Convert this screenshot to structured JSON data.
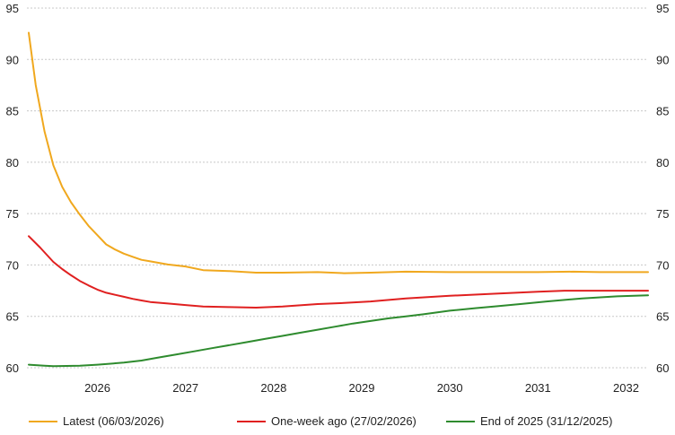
{
  "chart_data": {
    "type": "line",
    "title": "",
    "xlabel": "",
    "ylabel": "",
    "ylim": [
      60,
      95
    ],
    "xlim": [
      2025.7,
      2032.75
    ],
    "y_ticks": [
      60,
      65,
      70,
      75,
      80,
      85,
      90,
      95
    ],
    "x_ticks": [
      "2026",
      "2027",
      "2028",
      "2029",
      "2030",
      "2031",
      "2032"
    ],
    "grid": "horizontal dotted",
    "legend_position": "bottom",
    "series": [
      {
        "name": "Latest (06/03/2026)",
        "color": "#f0a81e",
        "x": [
          2025.72,
          2025.8,
          2025.9,
          2026.0,
          2026.1,
          2026.2,
          2026.3,
          2026.4,
          2026.5,
          2026.6,
          2026.7,
          2026.8,
          2026.9,
          2027.0,
          2027.1,
          2027.2,
          2027.3,
          2027.5,
          2027.7,
          2028.0,
          2028.3,
          2028.6,
          2029.0,
          2029.3,
          2029.6,
          2030.0,
          2030.5,
          2031.0,
          2031.5,
          2031.9,
          2032.2,
          2032.75
        ],
        "y": [
          92.6,
          87.5,
          83.0,
          79.7,
          77.6,
          76.1,
          74.9,
          73.8,
          72.9,
          72.0,
          71.5,
          71.1,
          70.8,
          70.5,
          70.35,
          70.2,
          70.05,
          69.85,
          69.5,
          69.4,
          69.25,
          69.25,
          69.3,
          69.2,
          69.25,
          69.35,
          69.3,
          69.3,
          69.3,
          69.35,
          69.3,
          69.3
        ]
      },
      {
        "name": "One-week ago (27/02/2026)",
        "color": "#e02020",
        "x": [
          2025.72,
          2025.85,
          2026.0,
          2026.1,
          2026.2,
          2026.3,
          2026.4,
          2026.5,
          2026.6,
          2026.7,
          2026.8,
          2026.9,
          2027.0,
          2027.1,
          2027.3,
          2027.5,
          2027.7,
          2028.0,
          2028.3,
          2028.6,
          2029.0,
          2029.3,
          2029.6,
          2030.0,
          2030.5,
          2031.0,
          2031.5,
          2031.8,
          2032.2,
          2032.75
        ],
        "y": [
          72.8,
          71.7,
          70.3,
          69.6,
          69.0,
          68.45,
          68.0,
          67.6,
          67.3,
          67.1,
          66.9,
          66.7,
          66.55,
          66.4,
          66.25,
          66.1,
          65.95,
          65.9,
          65.85,
          65.95,
          66.2,
          66.3,
          66.45,
          66.75,
          67.0,
          67.2,
          67.4,
          67.5,
          67.5,
          67.5
        ]
      },
      {
        "name": "End of 2025 (31/12/2025)",
        "color": "#2e8b2e",
        "x": [
          2025.72,
          2025.9,
          2026.0,
          2026.3,
          2026.5,
          2026.8,
          2027.0,
          2027.2,
          2027.4,
          2027.6,
          2027.8,
          2028.0,
          2028.2,
          2028.4,
          2028.6,
          2028.8,
          2029.0,
          2029.2,
          2029.4,
          2029.6,
          2029.8,
          2030.0,
          2030.2,
          2030.5,
          2030.8,
          2031.0,
          2031.3,
          2031.6,
          2032.0,
          2032.4,
          2032.75
        ],
        "y": [
          60.3,
          60.2,
          60.15,
          60.2,
          60.3,
          60.5,
          60.7,
          61.0,
          61.3,
          61.6,
          61.9,
          62.2,
          62.5,
          62.8,
          63.1,
          63.4,
          63.7,
          64.0,
          64.3,
          64.55,
          64.8,
          65.0,
          65.2,
          65.55,
          65.8,
          65.95,
          66.2,
          66.45,
          66.75,
          66.95,
          67.05
        ]
      }
    ]
  }
}
